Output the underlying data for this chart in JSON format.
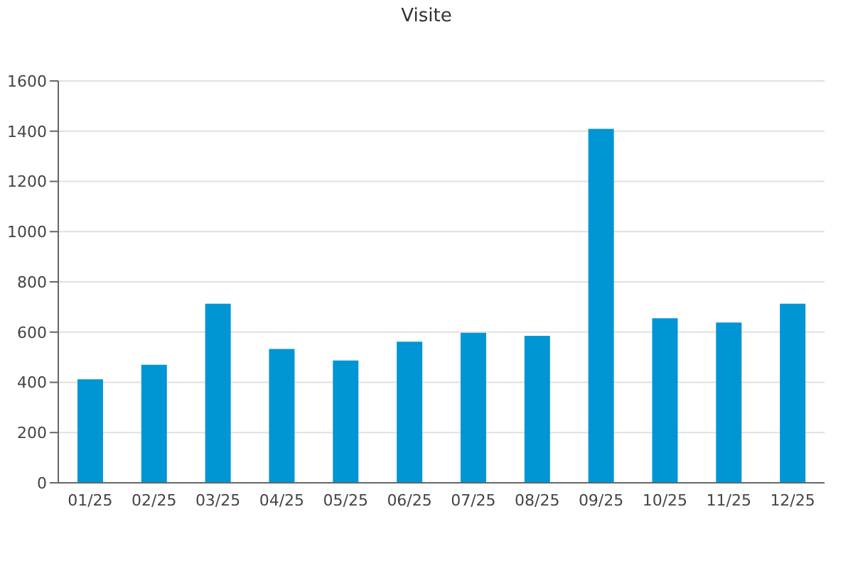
{
  "chart_data": {
    "type": "bar",
    "title": "Visite",
    "categories": [
      "01/25",
      "02/25",
      "03/25",
      "04/25",
      "05/25",
      "06/25",
      "07/25",
      "08/25",
      "09/25",
      "10/25",
      "11/25",
      "12/25"
    ],
    "values": [
      412,
      470,
      713,
      533,
      487,
      562,
      597,
      585,
      1409,
      655,
      638,
      713
    ],
    "color": "#0095d5",
    "ylim": [
      0,
      1600
    ],
    "yticks": [
      0,
      200,
      400,
      600,
      800,
      1000,
      1200,
      1400,
      1600
    ],
    "grid": "y",
    "legend": false
  }
}
